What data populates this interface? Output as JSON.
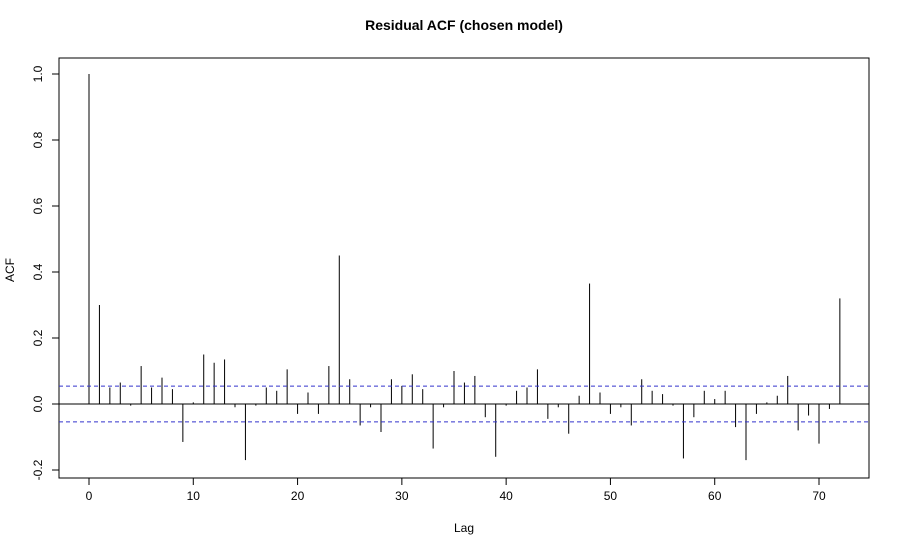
{
  "chart_data": {
    "type": "bar",
    "title": "Residual ACF (chosen model)",
    "xlabel": "Lag",
    "ylabel": "ACF",
    "xlim": [
      -3,
      75
    ],
    "ylim": [
      -0.2,
      1.0
    ],
    "x_ticks": [
      0,
      10,
      20,
      30,
      40,
      50,
      60,
      70
    ],
    "y_ticks": [
      -0.2,
      0.0,
      0.2,
      0.4,
      0.6,
      0.8,
      1.0
    ],
    "x_tick_labels": [
      "0",
      "10",
      "20",
      "30",
      "40",
      "50",
      "60",
      "70"
    ],
    "y_tick_labels": [
      "-0.2",
      "0.0",
      "0.2",
      "0.4",
      "0.6",
      "0.8",
      "1.0"
    ],
    "confidence_bound": 0.054,
    "confidence_color": "#3333cc",
    "bar_color": "#000000",
    "series": [
      {
        "lags": [
          0,
          1,
          2,
          3,
          4,
          5,
          6,
          7,
          8,
          9,
          10,
          11,
          12,
          13,
          14,
          15,
          16,
          17,
          18,
          19,
          20,
          21,
          22,
          23,
          24,
          25,
          26,
          27,
          28,
          29,
          30,
          31,
          32,
          33,
          34,
          35,
          36,
          37,
          38,
          39,
          40,
          41,
          42,
          43,
          44,
          45,
          46,
          47,
          48,
          49,
          50,
          51,
          52,
          53,
          54,
          55,
          56,
          57,
          58,
          59,
          60,
          61,
          62,
          63,
          64,
          65,
          66,
          67,
          68,
          69,
          70,
          71,
          72
        ],
        "values": [
          1.0,
          0.3,
          0.05,
          0.065,
          -0.005,
          0.115,
          0.05,
          0.08,
          0.045,
          -0.115,
          0.005,
          0.15,
          0.125,
          0.135,
          -0.01,
          -0.17,
          -0.005,
          0.05,
          0.04,
          0.105,
          -0.03,
          0.035,
          -0.03,
          0.115,
          0.45,
          0.075,
          -0.065,
          -0.01,
          -0.085,
          0.075,
          0.055,
          0.09,
          0.045,
          -0.135,
          -0.01,
          0.1,
          0.065,
          0.085,
          -0.04,
          -0.16,
          -0.005,
          0.04,
          0.05,
          0.105,
          -0.045,
          -0.01,
          -0.09,
          0.025,
          0.365,
          0.035,
          -0.03,
          -0.01,
          -0.065,
          0.075,
          0.04,
          0.03,
          -0.005,
          -0.165,
          -0.04,
          0.04,
          0.015,
          0.04,
          -0.07,
          -0.17,
          -0.03,
          0.005,
          0.025,
          0.085,
          -0.08,
          -0.035,
          -0.12,
          -0.015,
          0.32
        ]
      }
    ]
  }
}
